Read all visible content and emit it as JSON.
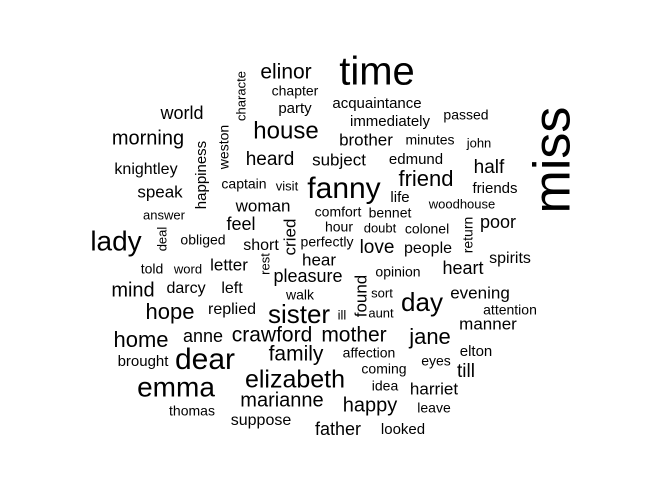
{
  "text_color": "#000000",
  "background_color": "#ffffff",
  "words": [
    {
      "text": "miss"
    },
    {
      "text": "time"
    },
    {
      "text": "elinor"
    },
    {
      "text": "characte"
    },
    {
      "text": "chapter"
    },
    {
      "text": "party"
    },
    {
      "text": "acquaintance"
    },
    {
      "text": "passed"
    },
    {
      "text": "world"
    },
    {
      "text": "immediately"
    },
    {
      "text": "house"
    },
    {
      "text": "morning"
    },
    {
      "text": "brother"
    },
    {
      "text": "minutes"
    },
    {
      "text": "john"
    },
    {
      "text": "weston"
    },
    {
      "text": "happiness"
    },
    {
      "text": "heard"
    },
    {
      "text": "subject"
    },
    {
      "text": "edmund"
    },
    {
      "text": "half"
    },
    {
      "text": "knightley"
    },
    {
      "text": "fanny"
    },
    {
      "text": "friend"
    },
    {
      "text": "captain"
    },
    {
      "text": "visit"
    },
    {
      "text": "friends"
    },
    {
      "text": "speak"
    },
    {
      "text": "life"
    },
    {
      "text": "woman"
    },
    {
      "text": "woodhouse"
    },
    {
      "text": "answer"
    },
    {
      "text": "comfort"
    },
    {
      "text": "bennet"
    },
    {
      "text": "feel"
    },
    {
      "text": "cried"
    },
    {
      "text": "hour"
    },
    {
      "text": "doubt"
    },
    {
      "text": "colonel"
    },
    {
      "text": "return"
    },
    {
      "text": "poor"
    },
    {
      "text": "lady"
    },
    {
      "text": "deal"
    },
    {
      "text": "obliged"
    },
    {
      "text": "short"
    },
    {
      "text": "perfectly"
    },
    {
      "text": "love"
    },
    {
      "text": "people"
    },
    {
      "text": "hear"
    },
    {
      "text": "spirits"
    },
    {
      "text": "told"
    },
    {
      "text": "word"
    },
    {
      "text": "letter"
    },
    {
      "text": "rest"
    },
    {
      "text": "pleasure"
    },
    {
      "text": "opinion"
    },
    {
      "text": "heart"
    },
    {
      "text": "mind"
    },
    {
      "text": "darcy"
    },
    {
      "text": "left"
    },
    {
      "text": "walk"
    },
    {
      "text": "found"
    },
    {
      "text": "sort"
    },
    {
      "text": "day"
    },
    {
      "text": "evening"
    },
    {
      "text": "hope"
    },
    {
      "text": "replied"
    },
    {
      "text": "sister"
    },
    {
      "text": "ill"
    },
    {
      "text": "aunt"
    },
    {
      "text": "attention"
    },
    {
      "text": "manner"
    },
    {
      "text": "home"
    },
    {
      "text": "anne"
    },
    {
      "text": "crawford"
    },
    {
      "text": "mother"
    },
    {
      "text": "jane"
    },
    {
      "text": "family"
    },
    {
      "text": "elton"
    },
    {
      "text": "brought"
    },
    {
      "text": "dear"
    },
    {
      "text": "affection"
    },
    {
      "text": "eyes"
    },
    {
      "text": "coming"
    },
    {
      "text": "till"
    },
    {
      "text": "emma"
    },
    {
      "text": "elizabeth"
    },
    {
      "text": "idea"
    },
    {
      "text": "harriet"
    },
    {
      "text": "marianne"
    },
    {
      "text": "happy"
    },
    {
      "text": "thomas"
    },
    {
      "text": "leave"
    },
    {
      "text": "suppose"
    },
    {
      "text": "father"
    },
    {
      "text": "looked"
    }
  ]
}
